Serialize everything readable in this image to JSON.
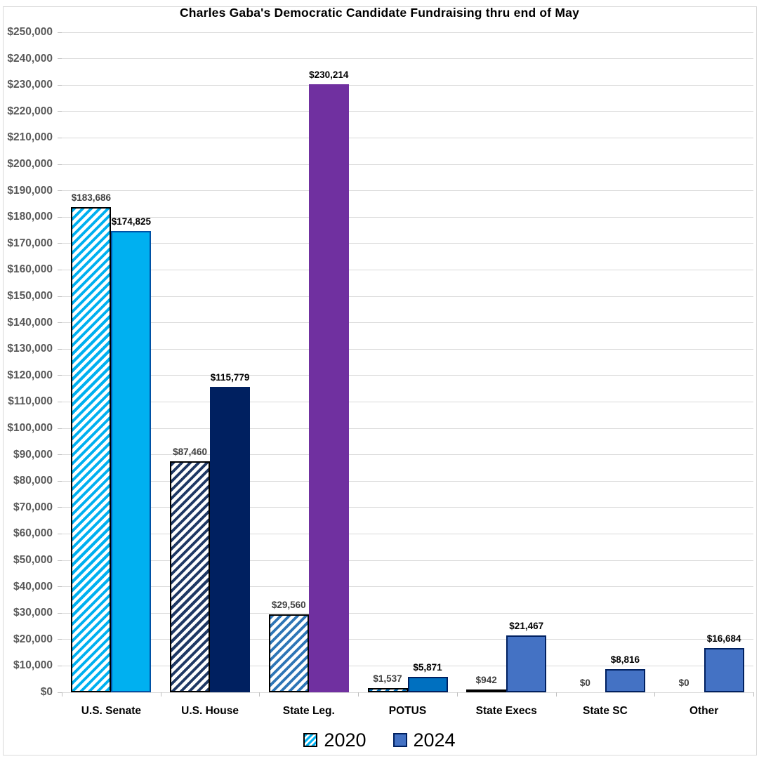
{
  "chart_data": {
    "type": "bar",
    "title": "Charles Gaba's Democratic Candidate Fundraising thru end of May",
    "categories": [
      "U.S. Senate",
      "U.S. House",
      "State Leg.",
      "POTUS",
      "State Execs",
      "State SC",
      "Other"
    ],
    "series": [
      {
        "name": "2020",
        "style": "hatched",
        "values": [
          183686,
          87460,
          29560,
          1537,
          942,
          0,
          0
        ],
        "labels": [
          "$183,686",
          "$87,460",
          "$29,560",
          "$1,537",
          "$942",
          "$0",
          "$0"
        ],
        "stripe_colors": [
          "#00b0f0",
          "#1f3864",
          "#2e75b6",
          "#0070c0",
          "#00b0f0",
          "#2e75b6",
          "#2e75b6"
        ],
        "border_color": "#000000",
        "label_color": "#404040"
      },
      {
        "name": "2024",
        "style": "solid",
        "values": [
          174825,
          115779,
          230214,
          5871,
          21467,
          8816,
          16684
        ],
        "labels": [
          "$174,825",
          "$115,779",
          "$230,214",
          "$5,871",
          "$21,467",
          "$8,816",
          "$16,684"
        ],
        "fill_colors": [
          "#00b0f0",
          "#002060",
          "#7030a0",
          "#0070c0",
          "#4472c4",
          "#4472c4",
          "#4472c4"
        ],
        "border_colors": [
          "#0051a5",
          "#002060",
          "#7030a0",
          "#002060",
          "#002060",
          "#002060",
          "#002060"
        ],
        "label_color": "#000000"
      }
    ],
    "ylim": [
      0,
      250000
    ],
    "y_tick_interval": 10000,
    "y_tick_prefix": "$",
    "grid": true,
    "legend_position": "bottom",
    "legend": [
      {
        "label": "2020",
        "swatch": "hatched-cyan"
      },
      {
        "label": "2024",
        "swatch": "solid-blue"
      }
    ]
  },
  "style_colors": {
    "gridline": "#d9d9d9",
    "tick": "#bfbfbf",
    "axis_text": "#595959",
    "hatch_legend_stripe": "#00b0f0",
    "legend_2024_fill": "#4472c4",
    "legend_2024_border": "#002060"
  }
}
